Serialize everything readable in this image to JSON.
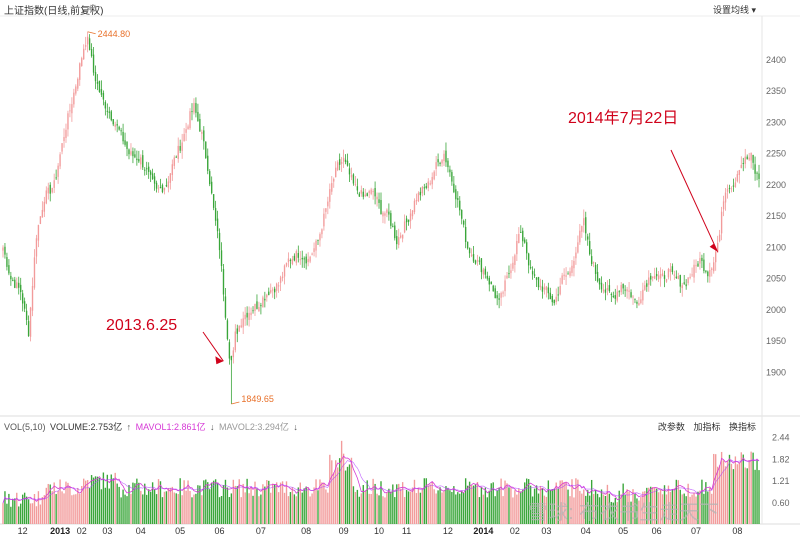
{
  "header": {
    "title": "上证指数",
    "mode": "(日线,前复权)",
    "settings_label": "设置均线"
  },
  "volume_legend": {
    "vol": "VOL(5,10)",
    "volume": "VOLUME:2.753亿",
    "mavol1": "MAVOL1:2.861亿",
    "mavol2": "MAVOL2:3.294亿",
    "tools": [
      "改参数",
      "加指标",
      "换指标"
    ]
  },
  "colors": {
    "up": "#f29b9b",
    "down": "#3aa63a",
    "ma1": "#d63ad6",
    "ma2": "#b040ff",
    "annotation": "#d0021b",
    "hl": "#e8702a"
  },
  "watermark": "雪球: 布衣书生走天下",
  "chart_data": {
    "type": "candlestick",
    "price_axis": {
      "ticks": [
        2400,
        2350,
        2300,
        2250,
        2200,
        2150,
        2100,
        2050,
        2000,
        1950,
        1900
      ],
      "ylim": [
        1840,
        2470
      ]
    },
    "volume_axis": {
      "ticks": [
        "2.44",
        "1.82",
        "1.21",
        "0.60"
      ],
      "ylim": [
        0,
        2.6
      ]
    },
    "x_labels": [
      {
        "label": "12",
        "i": 10
      },
      {
        "label": "2013",
        "i": 29,
        "bold": true
      },
      {
        "label": "02",
        "i": 40
      },
      {
        "label": "03",
        "i": 53
      },
      {
        "label": "04",
        "i": 70
      },
      {
        "label": "05",
        "i": 90
      },
      {
        "label": "06",
        "i": 110
      },
      {
        "label": "07",
        "i": 131
      },
      {
        "label": "08",
        "i": 154
      },
      {
        "label": "09",
        "i": 173
      },
      {
        "label": "10",
        "i": 191
      },
      {
        "label": "11",
        "i": 205
      },
      {
        "label": "12",
        "i": 226
      },
      {
        "label": "2014",
        "i": 244,
        "bold": true
      },
      {
        "label": "02",
        "i": 260
      },
      {
        "label": "03",
        "i": 276
      },
      {
        "label": "04",
        "i": 296
      },
      {
        "label": "05",
        "i": 315
      },
      {
        "label": "06",
        "i": 332
      },
      {
        "label": "07",
        "i": 352
      },
      {
        "label": "08",
        "i": 373
      }
    ],
    "close_keypoints": [
      [
        0,
        2100
      ],
      [
        4,
        2050
      ],
      [
        9,
        2030
      ],
      [
        13,
        1965
      ],
      [
        17,
        2120
      ],
      [
        21,
        2180
      ],
      [
        26,
        2200
      ],
      [
        31,
        2280
      ],
      [
        37,
        2360
      ],
      [
        41,
        2420
      ],
      [
        43,
        2440
      ],
      [
        46,
        2380
      ],
      [
        50,
        2340
      ],
      [
        55,
        2310
      ],
      [
        60,
        2280
      ],
      [
        64,
        2250
      ],
      [
        70,
        2240
      ],
      [
        74,
        2215
      ],
      [
        78,
        2190
      ],
      [
        83,
        2200
      ],
      [
        87,
        2240
      ],
      [
        91,
        2270
      ],
      [
        95,
        2310
      ],
      [
        97,
        2325
      ],
      [
        101,
        2280
      ],
      [
        104,
        2230
      ],
      [
        107,
        2160
      ],
      [
        110,
        2100
      ],
      [
        114,
        1960
      ],
      [
        116,
        1900
      ],
      [
        118,
        1960
      ],
      [
        122,
        1990
      ],
      [
        126,
        2000
      ],
      [
        130,
        2010
      ],
      [
        135,
        2030
      ],
      [
        140,
        2040
      ],
      [
        145,
        2080
      ],
      [
        150,
        2090
      ],
      [
        155,
        2080
      ],
      [
        160,
        2110
      ],
      [
        164,
        2160
      ],
      [
        167,
        2200
      ],
      [
        170,
        2230
      ],
      [
        173,
        2240
      ],
      [
        178,
        2200
      ],
      [
        183,
        2180
      ],
      [
        188,
        2190
      ],
      [
        192,
        2160
      ],
      [
        196,
        2150
      ],
      [
        200,
        2110
      ],
      [
        205,
        2140
      ],
      [
        210,
        2180
      ],
      [
        216,
        2200
      ],
      [
        220,
        2230
      ],
      [
        224,
        2250
      ],
      [
        227,
        2220
      ],
      [
        232,
        2160
      ],
      [
        236,
        2100
      ],
      [
        240,
        2080
      ],
      [
        245,
        2060
      ],
      [
        249,
        2030
      ],
      [
        252,
        2010
      ],
      [
        256,
        2050
      ],
      [
        259,
        2080
      ],
      [
        262,
        2120
      ],
      [
        265,
        2110
      ],
      [
        268,
        2060
      ],
      [
        272,
        2040
      ],
      [
        276,
        2030
      ],
      [
        280,
        2010
      ],
      [
        284,
        2050
      ],
      [
        288,
        2060
      ],
      [
        292,
        2110
      ],
      [
        295,
        2140
      ],
      [
        298,
        2090
      ],
      [
        302,
        2050
      ],
      [
        306,
        2030
      ],
      [
        310,
        2020
      ],
      [
        314,
        2040
      ],
      [
        318,
        2030
      ],
      [
        322,
        2010
      ],
      [
        326,
        2040
      ],
      [
        330,
        2060
      ],
      [
        334,
        2050
      ],
      [
        338,
        2060
      ],
      [
        342,
        2050
      ],
      [
        346,
        2040
      ],
      [
        350,
        2060
      ],
      [
        354,
        2080
      ],
      [
        358,
        2060
      ],
      [
        361,
        2080
      ],
      [
        364,
        2120
      ],
      [
        366,
        2180
      ],
      [
        368,
        2200
      ],
      [
        371,
        2200
      ],
      [
        374,
        2230
      ],
      [
        377,
        2240
      ],
      [
        380,
        2245
      ],
      [
        382,
        2220
      ],
      [
        384,
        2210
      ]
    ],
    "candle_count": 385,
    "high_mark": {
      "label": "2444.80",
      "i": 43,
      "value": 2444.8
    },
    "low_mark": {
      "label": "1849.65",
      "i": 116,
      "value": 1849.65
    },
    "annotations": [
      {
        "text": "2013.6.25",
        "target_i": 116,
        "target_value": 1918
      },
      {
        "text": "2014年7月22日",
        "target_i": 364,
        "target_value": 2093
      }
    ]
  }
}
